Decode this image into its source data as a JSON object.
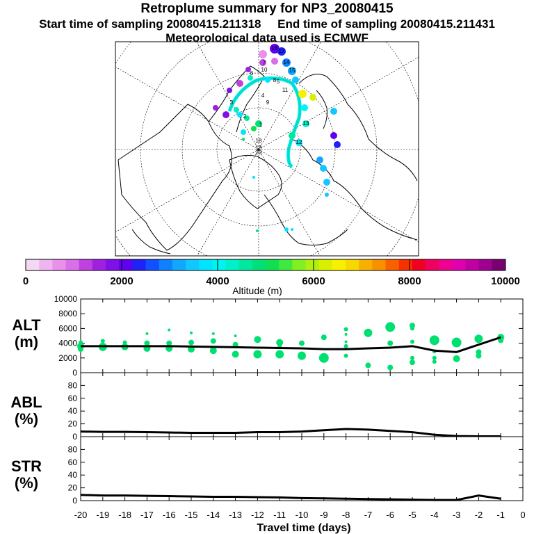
{
  "title": "Retroplume summary for NP3_20080415",
  "subtitle_start": "Start time of sampling 20080415.211318",
  "subtitle_end": "End time of sampling 20080415.211431",
  "subtitle_met": "Meteorological data used is ECMWF",
  "colors": {
    "plume": "#00e070",
    "line": "#000000"
  },
  "map": {
    "labels": [
      "16",
      "17",
      "14",
      "15",
      "13",
      "12",
      "11",
      "10",
      "9",
      "8",
      "7",
      "6",
      "5",
      "4",
      "3",
      "2",
      "1",
      "18",
      "19",
      "20"
    ]
  },
  "colorbar": {
    "label": "Altitude (m)",
    "ticks": [
      "0",
      "2000",
      "4000",
      "6000",
      "8000",
      "10000"
    ],
    "colors": [
      "#f4d9f4",
      "#f0b4f0",
      "#e890ec",
      "#d870e8",
      "#c040e0",
      "#a020e0",
      "#8010e8",
      "#6000f0",
      "#2020f8",
      "#1050ff",
      "#1080ff",
      "#10a8ff",
      "#10c8ff",
      "#00e4ff",
      "#00f4f0",
      "#00f0c8",
      "#00e8a0",
      "#00e078",
      "#10e050",
      "#40e840",
      "#80f020",
      "#b0f010",
      "#d8f000",
      "#f8f000",
      "#f8d800",
      "#f8b000",
      "#f89000",
      "#f86000",
      "#f83000",
      "#f00020",
      "#f00060",
      "#f00090",
      "#e000b0",
      "#c000a0",
      "#a00090",
      "#780070"
    ]
  },
  "chart_data": [
    {
      "type": "scatter",
      "name": "ALT",
      "panel_label_1": "ALT",
      "panel_label_2": "(m)",
      "ylim": [
        0,
        10000
      ],
      "yticks": [
        "0",
        "2000",
        "4000",
        "6000",
        "8000",
        "10000"
      ],
      "line": {
        "x": [
          -20,
          -19,
          -18,
          -17,
          -16,
          -15,
          -14,
          -13,
          -12,
          -11,
          -10,
          -9,
          -8,
          -7,
          -6,
          -5,
          -4,
          -3,
          -2,
          -1
        ],
        "y": [
          3600,
          3600,
          3600,
          3600,
          3600,
          3550,
          3500,
          3450,
          3400,
          3350,
          3300,
          3200,
          3200,
          3300,
          3400,
          3600,
          3000,
          2800,
          3800,
          4800
        ]
      },
      "points": [
        {
          "x": -20,
          "y": 3600,
          "s": 5
        },
        {
          "x": -20,
          "y": 3200,
          "s": 4
        },
        {
          "x": -20,
          "y": 4100,
          "s": 3
        },
        {
          "x": -19,
          "y": 3500,
          "s": 6
        },
        {
          "x": -19,
          "y": 4300,
          "s": 3
        },
        {
          "x": -18,
          "y": 3500,
          "s": 5
        },
        {
          "x": -18,
          "y": 4100,
          "s": 3
        },
        {
          "x": -17,
          "y": 3300,
          "s": 5
        },
        {
          "x": -17,
          "y": 4000,
          "s": 4
        },
        {
          "x": -17,
          "y": 5300,
          "s": 2
        },
        {
          "x": -16,
          "y": 3300,
          "s": 5
        },
        {
          "x": -16,
          "y": 4000,
          "s": 4
        },
        {
          "x": -16,
          "y": 5800,
          "s": 2
        },
        {
          "x": -15,
          "y": 3200,
          "s": 5
        },
        {
          "x": -15,
          "y": 4100,
          "s": 4
        },
        {
          "x": -15,
          "y": 5400,
          "s": 2
        },
        {
          "x": -14,
          "y": 3000,
          "s": 5
        },
        {
          "x": -14,
          "y": 4300,
          "s": 4
        },
        {
          "x": -14,
          "y": 5300,
          "s": 2
        },
        {
          "x": -13,
          "y": 2500,
          "s": 5
        },
        {
          "x": -13,
          "y": 3800,
          "s": 4
        },
        {
          "x": -13,
          "y": 5000,
          "s": 2
        },
        {
          "x": -12,
          "y": 2500,
          "s": 6
        },
        {
          "x": -12,
          "y": 4500,
          "s": 5
        },
        {
          "x": -11,
          "y": 2500,
          "s": 6
        },
        {
          "x": -11,
          "y": 4100,
          "s": 5
        },
        {
          "x": -11,
          "y": 3600,
          "s": 3
        },
        {
          "x": -10,
          "y": 2300,
          "s": 6
        },
        {
          "x": -10,
          "y": 4000,
          "s": 4
        },
        {
          "x": -9,
          "y": 2000,
          "s": 7
        },
        {
          "x": -9,
          "y": 4800,
          "s": 4
        },
        {
          "x": -8,
          "y": 2300,
          "s": 3
        },
        {
          "x": -8,
          "y": 3600,
          "s": 3
        },
        {
          "x": -8,
          "y": 4200,
          "s": 2
        },
        {
          "x": -8,
          "y": 5200,
          "s": 2
        },
        {
          "x": -8,
          "y": 5900,
          "s": 3
        },
        {
          "x": -7,
          "y": 5400,
          "s": 6
        },
        {
          "x": -7,
          "y": 1000,
          "s": 4
        },
        {
          "x": -6,
          "y": 6200,
          "s": 7
        },
        {
          "x": -6,
          "y": 4000,
          "s": 4
        },
        {
          "x": -6,
          "y": 700,
          "s": 4
        },
        {
          "x": -5,
          "y": 6400,
          "s": 4
        },
        {
          "x": -5,
          "y": 6000,
          "s": 3
        },
        {
          "x": -5,
          "y": 4200,
          "s": 3
        },
        {
          "x": -5,
          "y": 2000,
          "s": 3
        },
        {
          "x": -5,
          "y": 1400,
          "s": 4
        },
        {
          "x": -4,
          "y": 4400,
          "s": 7
        },
        {
          "x": -4,
          "y": 2900,
          "s": 3
        },
        {
          "x": -4,
          "y": 2000,
          "s": 3
        },
        {
          "x": -4,
          "y": 1500,
          "s": 3
        },
        {
          "x": -3,
          "y": 4100,
          "s": 7
        },
        {
          "x": -3,
          "y": 1900,
          "s": 5
        },
        {
          "x": -2,
          "y": 4600,
          "s": 6
        },
        {
          "x": -2,
          "y": 2800,
          "s": 4
        },
        {
          "x": -2,
          "y": 2300,
          "s": 4
        },
        {
          "x": -1,
          "y": 4800,
          "s": 5
        },
        {
          "x": -1,
          "y": 4400,
          "s": 4
        }
      ]
    },
    {
      "type": "line",
      "name": "ABL",
      "panel_label_1": "ABL",
      "panel_label_2": "(%)",
      "ylim": [
        0,
        100
      ],
      "yticks": [
        "0",
        "20",
        "40",
        "60",
        "80"
      ],
      "x": [
        -20,
        -19,
        -18,
        -17,
        -16,
        -15,
        -14,
        -13,
        -12,
        -11,
        -10,
        -9,
        -8,
        -7,
        -6,
        -5,
        -4,
        -3,
        -2,
        -1
      ],
      "y": [
        8,
        7.5,
        7.5,
        7,
        6.5,
        6,
        6,
        6,
        7,
        7,
        8,
        10,
        12,
        11,
        9,
        7,
        3,
        1,
        0.5,
        0.5
      ]
    },
    {
      "type": "line",
      "name": "STR",
      "panel_label_1": "STR",
      "panel_label_2": "(%)",
      "ylim": [
        0,
        100
      ],
      "yticks": [
        "0",
        "20",
        "40",
        "60",
        "80"
      ],
      "x": [
        -20,
        -19,
        -18,
        -17,
        -16,
        -15,
        -14,
        -13,
        -12,
        -11,
        -10,
        -9,
        -8,
        -7,
        -6,
        -5,
        -4,
        -3,
        -2,
        -1
      ],
      "y": [
        9,
        8,
        8,
        7.5,
        7,
        6.5,
        6,
        6,
        5.5,
        5,
        4,
        3.5,
        3,
        2.5,
        2,
        1.5,
        1,
        1,
        8,
        3
      ]
    }
  ],
  "x_axis": {
    "label": "Travel time (days)",
    "ticks": [
      "-20",
      "-19",
      "-18",
      "-17",
      "-16",
      "-15",
      "-14",
      "-13",
      "-12",
      "-11",
      "-10",
      "-9",
      "-8",
      "-7",
      "-6",
      "-5",
      "-4",
      "-3",
      "-2",
      "-1",
      "0"
    ]
  }
}
